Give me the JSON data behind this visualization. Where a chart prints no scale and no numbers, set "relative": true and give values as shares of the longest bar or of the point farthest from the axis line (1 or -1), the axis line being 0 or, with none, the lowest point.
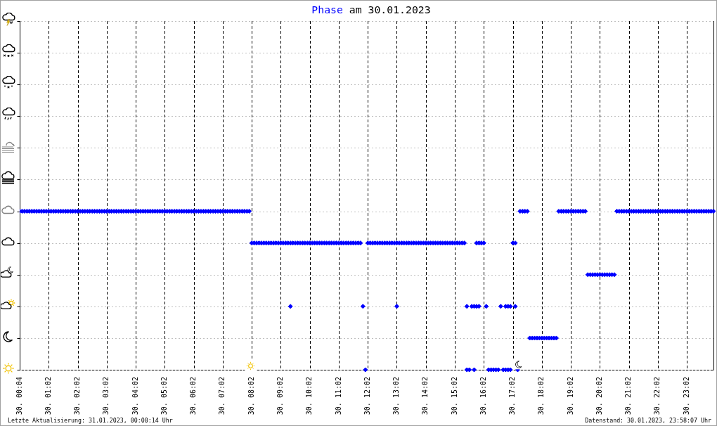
{
  "chart_data": {
    "type": "scatter",
    "relative": true,
    "title": "Phase am 30.01.2023",
    "annotations": [
      "Letzte Aktualisierung: 31.01.2023, 00:00:14 Uhr",
      "Datenstand: 30.01.2023, 23:58:07 Uhr"
    ],
    "marker": "diamond",
    "grid": true,
    "tick_labels": "x",
    "categories": [
      "30. 00:04",
      null,
      null,
      null,
      null,
      null,
      null,
      null,
      null,
      null,
      null,
      null,
      "30. 01:02",
      null,
      null,
      null,
      null,
      null,
      null,
      null,
      null,
      null,
      null,
      null,
      "30. 02:02",
      null,
      null,
      null,
      null,
      null,
      null,
      null,
      null,
      null,
      null,
      null,
      "30. 03:02",
      null,
      null,
      null,
      null,
      null,
      null,
      null,
      null,
      null,
      null,
      null,
      "30. 04:02",
      null,
      null,
      null,
      null,
      null,
      null,
      null,
      null,
      null,
      null,
      null,
      "30. 05:02",
      null,
      null,
      null,
      null,
      null,
      null,
      null,
      null,
      null,
      null,
      null,
      "30. 06:02",
      null,
      null,
      null,
      null,
      null,
      null,
      null,
      null,
      null,
      null,
      null,
      "30. 07:02",
      null,
      null,
      null,
      null,
      null,
      null,
      null,
      null,
      null,
      null,
      null,
      "30. 08:02",
      null,
      null,
      null,
      null,
      null,
      null,
      null,
      null,
      null,
      null,
      null,
      "30. 09:02",
      null,
      null,
      null,
      null,
      null,
      null,
      null,
      null,
      null,
      null,
      null,
      "30. 10:02",
      null,
      null,
      null,
      null,
      null,
      null,
      null,
      null,
      null,
      null,
      null,
      "30. 11:02",
      null,
      null,
      null,
      null,
      null,
      null,
      null,
      null,
      null,
      null,
      null,
      "30. 12:02",
      null,
      null,
      null,
      null,
      null,
      null,
      null,
      null,
      null,
      null,
      null,
      "30. 13:02",
      null,
      null,
      null,
      null,
      null,
      null,
      null,
      null,
      null,
      null,
      null,
      "30. 14:02",
      null,
      null,
      null,
      null,
      null,
      null,
      null,
      null,
      null,
      null,
      null,
      "30. 15:02",
      null,
      null,
      null,
      null,
      null,
      null,
      null,
      null,
      null,
      null,
      null,
      "30. 16:02",
      null,
      null,
      null,
      null,
      null,
      null,
      null,
      null,
      null,
      null,
      null,
      "30. 17:02",
      null,
      null,
      null,
      null,
      null,
      null,
      null,
      null,
      null,
      null,
      null,
      "30. 18:02",
      null,
      null,
      null,
      null,
      null,
      null,
      null,
      null,
      null,
      null,
      null,
      "30. 19:02",
      null,
      null,
      null,
      null,
      null,
      null,
      null,
      null,
      null,
      null,
      null,
      "30. 20:02",
      null,
      null,
      null,
      null,
      null,
      null,
      null,
      null,
      null,
      null,
      null,
      "30. 21:02",
      null,
      null,
      null,
      null,
      null,
      null,
      null,
      null,
      null,
      null,
      null,
      "30. 22:02",
      null,
      null,
      null,
      null,
      null,
      null,
      null,
      null,
      null,
      null,
      null,
      "30. 23:02",
      null,
      null,
      null,
      null,
      null,
      null,
      null,
      null,
      null,
      null,
      null
    ],
    "series": [
      {
        "color": "#0000ff",
        "values": [
          1,
          1,
          1,
          1,
          1,
          1,
          1,
          1,
          1,
          1,
          1,
          1,
          1,
          1,
          1,
          1,
          1,
          1,
          1,
          1,
          1,
          1,
          1,
          1,
          1,
          1,
          1,
          1,
          1,
          1,
          1,
          1,
          1,
          1,
          1,
          1,
          1,
          1,
          1,
          1,
          1,
          1,
          1,
          1,
          1,
          1,
          1,
          1,
          1,
          1,
          1,
          1,
          1,
          1,
          1,
          1,
          1,
          1,
          1,
          1,
          1,
          1,
          1,
          1,
          1,
          1,
          1,
          1,
          1,
          1,
          1,
          1,
          1,
          1,
          1,
          1,
          1,
          1,
          1,
          1,
          1,
          1,
          1,
          1,
          1,
          1,
          1,
          1,
          1,
          1,
          1,
          1,
          1,
          1,
          1,
          1,
          0.8,
          0.8,
          0.8,
          0.8,
          0.8,
          0.8,
          0.8,
          0.8,
          0.8,
          0.8,
          0.8,
          0.8,
          0.8,
          0.8,
          0.8,
          0.8,
          0.8,
          0.8,
          0.8,
          0.8,
          0.8,
          0.8,
          0.8,
          0.8,
          0.8,
          0.8,
          0.8,
          0.8,
          0.8,
          0.8,
          0.8,
          0.8,
          0.8,
          0.8,
          0.8,
          0.8,
          0.8,
          0.8,
          0.8,
          0.8,
          0.8,
          0.8,
          0.8,
          0.8,
          0.8,
          0.8,
          0.4,
          0,
          0.8,
          0.8,
          0.8,
          0.8,
          0.8,
          0.8,
          0.8,
          0.8,
          0.8,
          0.8,
          0.8,
          0.8,
          0.8,
          0.8,
          0.8,
          0.8,
          0.8,
          0.8,
          0.8,
          0.8,
          0.8,
          0.8,
          0.8,
          0.8,
          0.8,
          0.8,
          0.8,
          0.8,
          0.8,
          0.8,
          0.8,
          0.8,
          0.8,
          0.8,
          0.8,
          0.8,
          0.8,
          0.8,
          0.8,
          0.8,
          0.8,
          0.4,
          0,
          0.4,
          0.4,
          0.8,
          0.8,
          0.8,
          0.8,
          0.4,
          0,
          0,
          0,
          0,
          0,
          0.4,
          0,
          0.4,
          0.4,
          0.4,
          0.8,
          0.8,
          0,
          1,
          1,
          1,
          1,
          0.2,
          0.2,
          0.2,
          0.2,
          0.2,
          0.2,
          0.2,
          0.2,
          0.2,
          0.2,
          0.2,
          0.2,
          1,
          1,
          1,
          1,
          1,
          1,
          1,
          1,
          1,
          1,
          1,
          1,
          0.6,
          0.6,
          0.6,
          0.6,
          0.6,
          0.6,
          0.6,
          0.6,
          0.6,
          0.6,
          0.6,
          0.6,
          1,
          1,
          1,
          1,
          1,
          1,
          1,
          1,
          1,
          1,
          1,
          1,
          1,
          1,
          1,
          1,
          1,
          1,
          1,
          1,
          1,
          1,
          1,
          1,
          1,
          1,
          1,
          1,
          1,
          1,
          1,
          1,
          1,
          1,
          1,
          1,
          1,
          1,
          1,
          1,
          1
        ]
      },
      {
        "color": "#0000ff",
        "values": [
          null,
          null,
          null,
          null,
          null,
          null,
          null,
          null,
          null,
          null,
          null,
          null,
          null,
          null,
          null,
          null,
          null,
          null,
          null,
          null,
          null,
          null,
          null,
          null,
          null,
          null,
          null,
          null,
          null,
          null,
          null,
          null,
          null,
          null,
          null,
          null,
          null,
          null,
          null,
          null,
          null,
          null,
          null,
          null,
          null,
          null,
          null,
          null,
          null,
          null,
          null,
          null,
          null,
          null,
          null,
          null,
          null,
          null,
          null,
          null,
          null,
          null,
          null,
          null,
          null,
          null,
          null,
          null,
          null,
          null,
          null,
          null,
          null,
          null,
          null,
          null,
          null,
          null,
          null,
          null,
          null,
          null,
          null,
          null,
          null,
          null,
          null,
          null,
          null,
          null,
          null,
          null,
          null,
          null,
          null,
          null,
          null,
          null,
          null,
          null,
          null,
          null,
          null,
          null,
          null,
          null,
          null,
          null,
          null,
          null,
          null,
          null,
          0.4,
          null,
          null,
          null,
          null,
          null,
          null,
          null,
          null,
          null,
          null,
          null,
          null,
          null,
          null,
          null,
          null,
          null,
          null,
          null,
          null,
          null,
          null,
          null,
          null,
          null,
          null,
          null,
          null,
          null,
          null,
          null,
          null,
          null,
          null,
          null,
          null,
          null,
          null,
          null,
          null,
          null,
          null,
          null,
          0.4,
          null,
          null,
          null,
          null,
          null,
          null,
          null,
          null,
          null,
          null,
          null,
          null,
          null,
          null,
          null,
          null,
          null,
          null,
          null,
          null,
          null,
          null,
          null,
          null,
          null,
          null,
          null,
          null,
          0,
          null,
          null,
          0,
          0.4,
          0.4,
          null,
          null,
          null,
          null,
          null,
          null,
          null,
          null,
          null,
          null,
          0,
          0,
          0,
          null,
          0.4,
          null,
          null,
          null,
          null,
          null,
          null,
          null,
          null,
          null,
          null,
          null,
          null,
          null,
          null,
          null,
          null,
          null,
          null,
          null,
          null,
          null,
          null,
          null,
          null,
          null,
          null,
          null,
          null,
          null,
          null,
          null,
          null,
          null,
          null,
          null,
          null,
          null,
          null,
          null,
          null,
          null,
          null,
          null,
          null,
          null,
          null,
          null,
          null,
          null,
          null,
          null,
          null,
          null,
          null,
          null,
          null,
          null,
          null,
          null,
          null,
          null,
          null,
          null,
          null,
          null,
          null,
          null,
          null,
          null,
          null,
          null,
          null,
          null,
          null,
          null,
          null,
          null,
          null,
          null,
          null,
          null,
          null
        ]
      }
    ]
  }
}
